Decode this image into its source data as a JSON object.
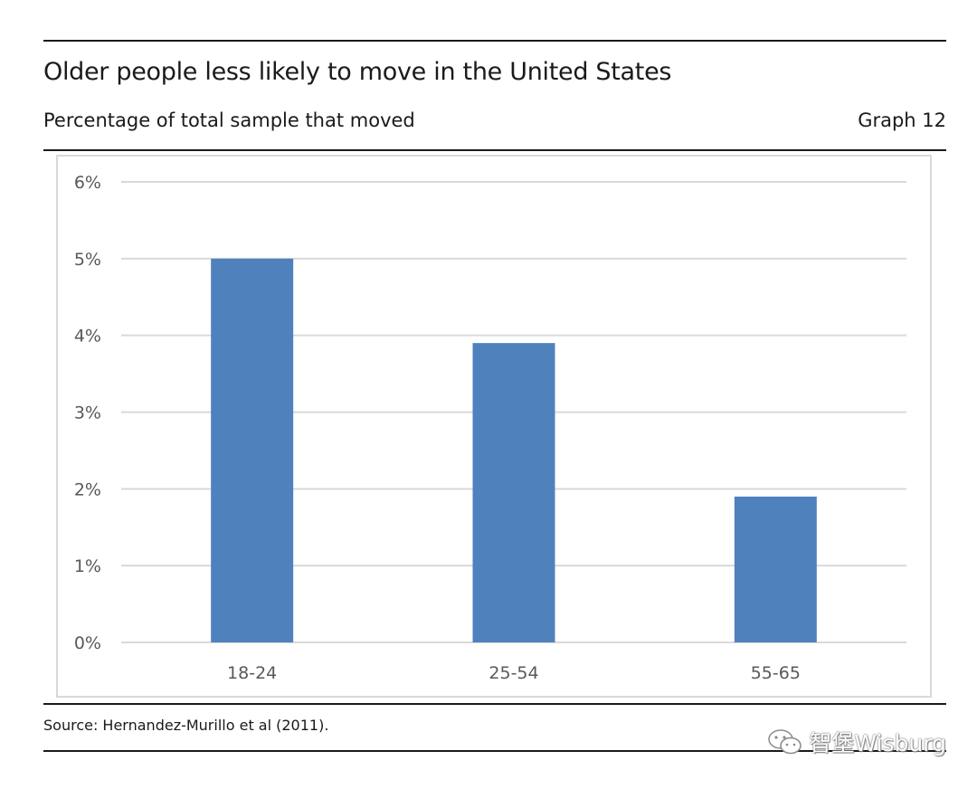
{
  "header": {
    "title": "Older people less likely to move in the United States",
    "subtitle": "Percentage of total sample that moved",
    "graph_label": "Graph 12"
  },
  "footer": {
    "source": "Source: Hernandez-Murillo et al (2011).",
    "watermark": "智堡Wisburg"
  },
  "colors": {
    "bar": "#4f81bd",
    "grid": "#d9d9d9",
    "axis_text": "#595959",
    "rule": "#1a1a1a"
  },
  "icons": {
    "watermark_logo": "wechat-icon"
  },
  "chart_data": {
    "type": "bar",
    "title": "Older people less likely to move in the United States",
    "subtitle": "Percentage of total sample that moved",
    "xlabel": "",
    "ylabel": "",
    "categories": [
      "18-24",
      "25-54",
      "55-65"
    ],
    "values": [
      5.0,
      3.9,
      1.9
    ],
    "unit": "%",
    "ylim": [
      0,
      6
    ],
    "yticks": [
      0,
      1,
      2,
      3,
      4,
      5,
      6
    ],
    "ytick_labels": [
      "0%",
      "1%",
      "2%",
      "3%",
      "4%",
      "5%",
      "6%"
    ],
    "grid": true,
    "legend": "none"
  }
}
